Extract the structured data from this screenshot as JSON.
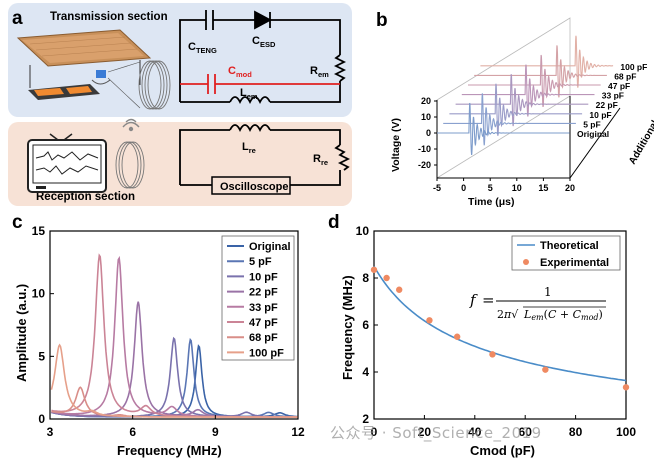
{
  "panels": {
    "a": "a",
    "b": "b",
    "c": "c",
    "d": "d"
  },
  "panel_a": {
    "transmission_label": "Transmission section",
    "reception_label": "Reception section",
    "c_teng": "C",
    "c_teng_sub": "TENG",
    "c_esd": "C",
    "c_esd_sub": "ESD",
    "r_em": "R",
    "r_em_sub": "em",
    "c_mod": "C",
    "c_mod_sub": "mod",
    "l_em": "L",
    "l_em_sub": "em",
    "l_re": "L",
    "l_re_sub": "re",
    "r_re": "R",
    "r_re_sub": "re",
    "oscilloscope": "Oscilloscope",
    "colors": {
      "trans_bg": "#dde6f3",
      "recv_bg": "#f7e2d6",
      "mod_red": "#e02020"
    }
  },
  "chart_data": [
    {
      "id": "b",
      "type": "line",
      "title": "",
      "xlabel": "Time (μs)",
      "ylabel": "Voltage (V)",
      "zlabel": "Additional capacitance",
      "x_ticks": [
        "-5",
        "0",
        "5",
        "10",
        "15",
        "20"
      ],
      "y_ticks": [
        "-20",
        "-10",
        "0",
        "10",
        "20"
      ],
      "series": [
        "Original",
        "5 pF",
        "10 pF",
        "22 pF",
        "33 pF",
        "47 pF",
        "68 pF",
        "100 pF"
      ]
    },
    {
      "id": "c",
      "type": "line",
      "xlabel": "Frequency (MHz)",
      "ylabel": "Amplitude (a.u.)",
      "xlim": [
        3,
        12
      ],
      "ylim": [
        0,
        15
      ],
      "x_ticks": [
        "3",
        "6",
        "9",
        "12"
      ],
      "y_ticks": [
        "0",
        "5",
        "10",
        "15"
      ],
      "legend_position": "top-right",
      "series": [
        {
          "name": "Original",
          "peak_x": 8.4,
          "peak_y": 5.7,
          "color": "#3a63a7"
        },
        {
          "name": "5 pF",
          "peak_x": 8.1,
          "peak_y": 6.2,
          "color": "#5a76b4"
        },
        {
          "name": "10 pF",
          "peak_x": 7.5,
          "peak_y": 6.3,
          "color": "#7a72ad"
        },
        {
          "name": "22 pF",
          "peak_x": 6.2,
          "peak_y": 9.2,
          "color": "#9a73a6"
        },
        {
          "name": "33 pF",
          "peak_x": 5.5,
          "peak_y": 12.7,
          "color": "#b77ba3"
        },
        {
          "name": "47 pF",
          "peak_x": 4.8,
          "peak_y": 12.9,
          "color": "#cb8496"
        },
        {
          "name": "68 pF",
          "peak_x": 4.1,
          "peak_y": 2.3,
          "color": "#d98e88"
        },
        {
          "name": "100 pF",
          "peak_x": 3.35,
          "peak_y": 5.5,
          "color": "#e6a08a"
        }
      ]
    },
    {
      "id": "d",
      "type": "scatter",
      "xlabel": "Cmod (pF)",
      "ylabel": "Frequency (MHz)",
      "xlim": [
        0,
        100
      ],
      "ylim": [
        2,
        10
      ],
      "x_ticks": [
        "0",
        "20",
        "40",
        "60",
        "80",
        "100"
      ],
      "y_ticks": [
        "2",
        "4",
        "6",
        "8",
        "10"
      ],
      "legend_position": "top-right",
      "legend": [
        "Theoretical",
        "Experimental"
      ],
      "experimental": {
        "x": [
          0,
          5,
          10,
          22,
          33,
          47,
          68,
          100
        ],
        "y": [
          8.35,
          8.0,
          7.5,
          6.2,
          5.5,
          4.75,
          4.1,
          3.35
        ]
      },
      "theoretical": {
        "x": [
          0,
          10,
          20,
          30,
          40,
          50,
          60,
          70,
          80,
          90,
          100
        ],
        "y": [
          8.5,
          7.45,
          6.7,
          6.1,
          5.6,
          5.2,
          4.85,
          4.55,
          4.3,
          4.05,
          3.85
        ]
      },
      "formula": "f = 1 / (2π √(L_em (C + C_mod)))"
    }
  ],
  "watermark": "公众号 · Soft_Science_2019"
}
